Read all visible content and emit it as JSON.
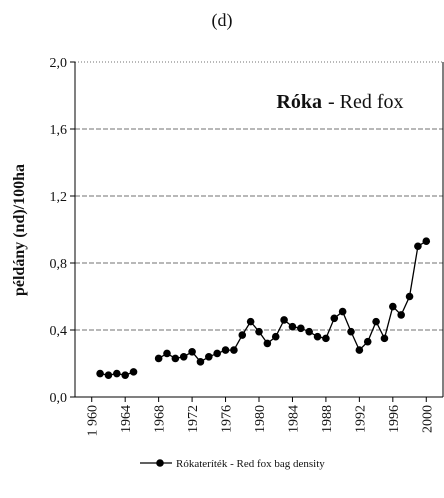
{
  "chart_data": {
    "type": "line",
    "title": "(d)",
    "ylabel": "példány (nd)/100ha",
    "annotation_bold": "Róka",
    "annotation": "- Red fox",
    "x": [
      1961,
      1962,
      1963,
      1964,
      1965,
      1966,
      1968,
      1969,
      1970,
      1971,
      1972,
      1973,
      1974,
      1975,
      1976,
      1977,
      1978,
      1979,
      1980,
      1981,
      1982,
      1983,
      1984,
      1985,
      1986,
      1987,
      1988,
      1989,
      1990,
      1991,
      1992,
      1993,
      1994,
      1995,
      1996,
      1997,
      1998,
      1999,
      2000
    ],
    "series": [
      {
        "name": "Rókateríték - Red fox bag density",
        "color": "#000000",
        "values": [
          0.14,
          0.13,
          0.14,
          0.13,
          0.15,
          null,
          0.23,
          0.26,
          0.23,
          0.24,
          0.27,
          0.21,
          0.24,
          0.26,
          0.28,
          0.28,
          0.37,
          0.45,
          0.39,
          0.32,
          0.36,
          0.46,
          0.42,
          0.41,
          0.39,
          0.36,
          0.35,
          0.47,
          0.51,
          0.39,
          0.28,
          0.33,
          0.45,
          0.35,
          0.54,
          0.49,
          0.6,
          0.9,
          0.93
        ]
      }
    ],
    "xlim": [
      1958,
      2002
    ],
    "xticks": [
      {
        "value": 1960,
        "label": "1 960"
      },
      1964,
      1968,
      1972,
      1976,
      1980,
      1984,
      1988,
      1992,
      1996,
      2000
    ],
    "ylim": [
      0,
      2
    ],
    "yticks": [
      {
        "value": 0,
        "label": "0,0"
      },
      {
        "value": 0.4,
        "label": "0,4"
      },
      {
        "value": 0.8,
        "label": "0,8"
      },
      {
        "value": 1.2,
        "label": "1,2"
      },
      {
        "value": 1.6,
        "label": "1,6"
      },
      {
        "value": 2,
        "label": "2,0"
      }
    ],
    "grid": true
  }
}
